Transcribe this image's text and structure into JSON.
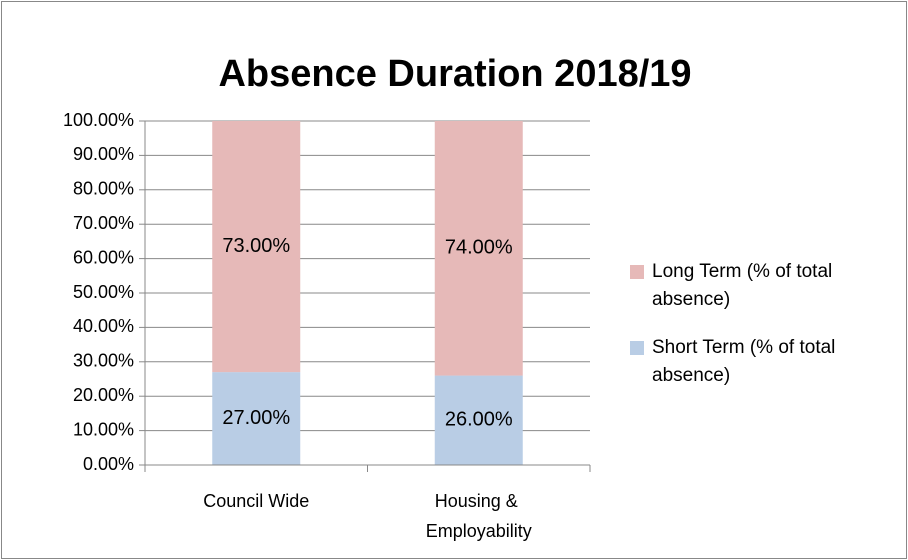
{
  "chart_data": {
    "type": "stacked-bar",
    "title": "Absence Duration 2018/19",
    "categories": [
      "Council Wide",
      "Housing & Employability"
    ],
    "series": [
      {
        "name": "Short Term (% of total absence)",
        "color": "#b9cde5",
        "values": [
          27,
          26
        ],
        "value_labels": [
          "27.00%",
          "26.00%"
        ]
      },
      {
        "name": "Long Term (% of total absence)",
        "color": "#e6b9b8",
        "values": [
          73,
          74
        ],
        "value_labels": [
          "73.00%",
          "74.00%"
        ]
      }
    ],
    "ylim": [
      0,
      100
    ],
    "yticks": [
      {
        "value": 0,
        "label": "0.00%"
      },
      {
        "value": 10,
        "label": "10.00%"
      },
      {
        "value": 20,
        "label": "20.00%"
      },
      {
        "value": 30,
        "label": "30.00%"
      },
      {
        "value": 40,
        "label": "40.00%"
      },
      {
        "value": 50,
        "label": "50.00%"
      },
      {
        "value": 60,
        "label": "60.00%"
      },
      {
        "value": 70,
        "label": "70.00%"
      },
      {
        "value": 80,
        "label": "80.00%"
      },
      {
        "value": 90,
        "label": "90.00%"
      },
      {
        "value": 100,
        "label": "100.00%"
      }
    ],
    "grid": true,
    "legend": "right"
  }
}
